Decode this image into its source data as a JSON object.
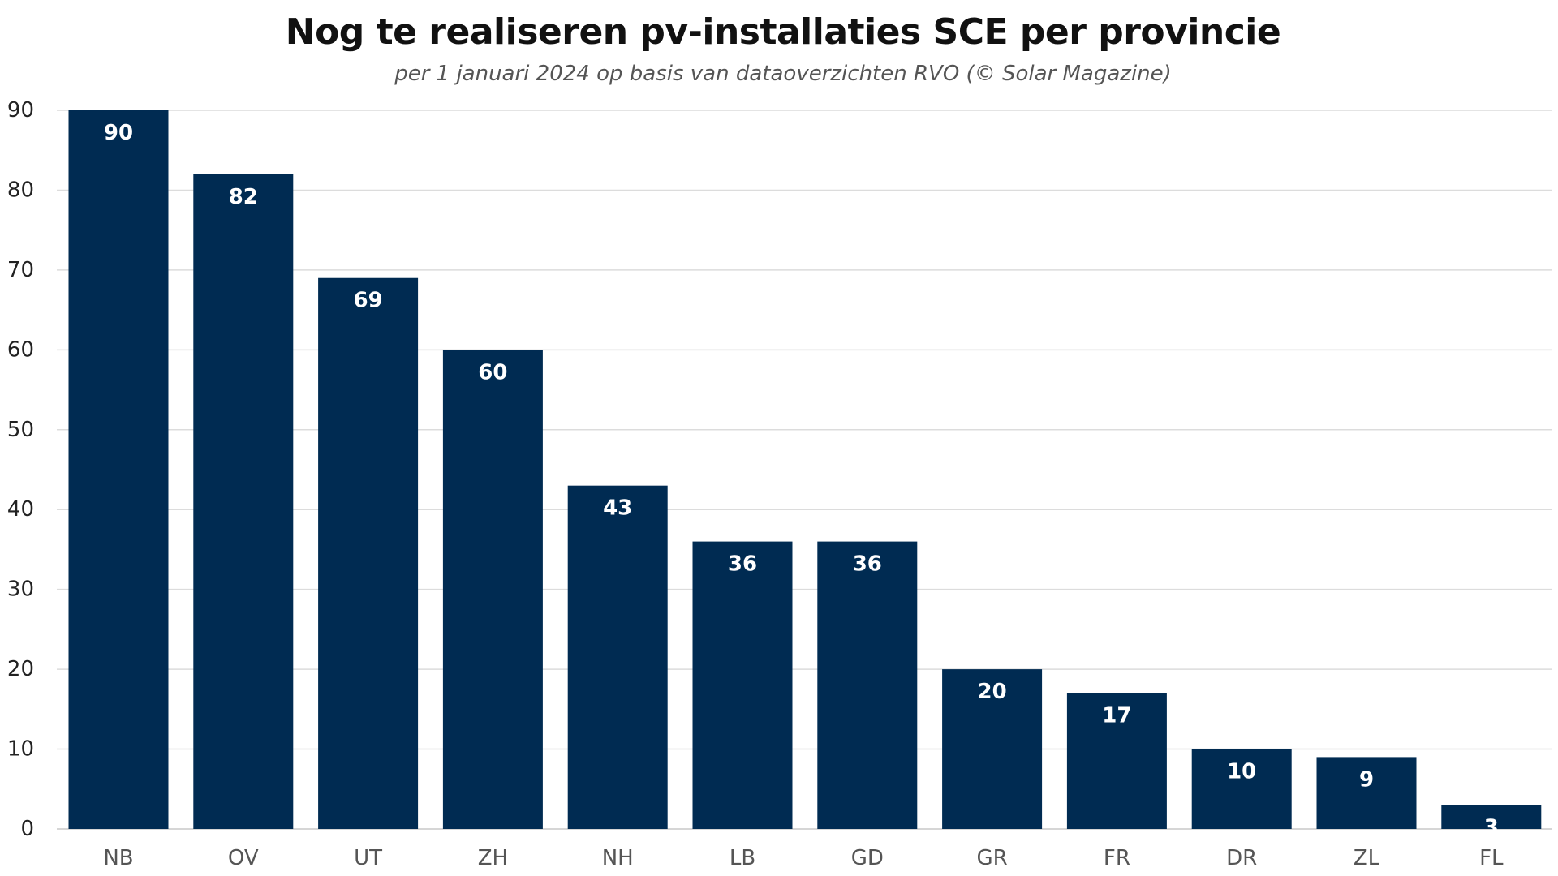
{
  "chart_data": {
    "type": "bar",
    "title": "Nog te realiseren pv-installaties SCE per provincie",
    "subtitle": "per 1 januari 2024 op basis van dataoverzichten RVO (© Solar Magazine)",
    "xlabel": "",
    "ylabel": "",
    "categories": [
      "NB",
      "OV",
      "UT",
      "ZH",
      "NH",
      "LB",
      "GD",
      "GR",
      "FR",
      "DR",
      "ZL",
      "FL"
    ],
    "values": [
      90,
      82,
      69,
      60,
      43,
      36,
      36,
      20,
      17,
      10,
      9,
      3
    ],
    "ylim": [
      0,
      90
    ],
    "yticks": [
      0,
      10,
      20,
      30,
      40,
      50,
      60,
      70,
      80,
      90
    ],
    "grid": true,
    "data_labels": true,
    "legend": "none",
    "colors": {
      "bar": "#002b52",
      "grid": "#dcdcdc",
      "label": "#ffffff"
    }
  }
}
